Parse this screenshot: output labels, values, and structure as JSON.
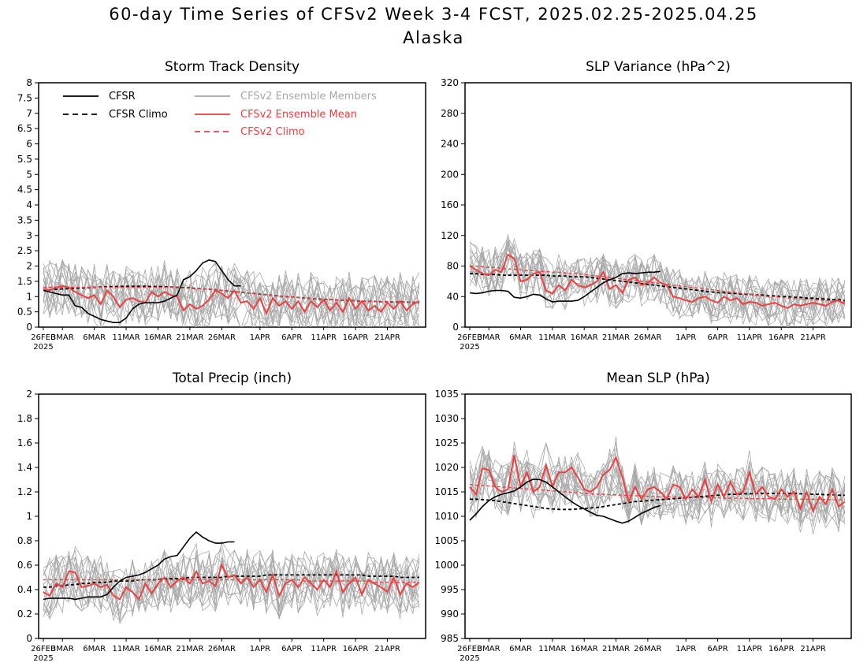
{
  "title": "60-day Time Series of CFSv2 Week 3-4 FCST, 2025.02.25-2025.04.25",
  "subtitle": "Alaska",
  "colors": {
    "cfsr": "#000000",
    "members": "#a8a8a8",
    "ens_mean": "#ee4040"
  },
  "legend": [
    {
      "label": "CFSR",
      "color": "#000000",
      "style": "solid"
    },
    {
      "label": "CFSR Climo",
      "color": "#000000",
      "style": "dashed"
    },
    {
      "label": "CFSv2 Ensemble Members",
      "color": "#a8a8a8",
      "style": "solid"
    },
    {
      "label": "CFSv2 Ensemble Mean",
      "color": "#ee4040",
      "style": "solid"
    },
    {
      "label": "CFSv2 Climo",
      "color": "#ee4040",
      "style": "dashed"
    }
  ],
  "chart_data": [
    {
      "type": "line",
      "title": "Storm Track Density",
      "x": "day index 0-59, 2025-02-26 .. 2025-04-26",
      "xticks": [
        "26FEB",
        "3MAR",
        "6MAR",
        "11MAR",
        "16MAR",
        "21MAR",
        "26MAR",
        "1APR",
        "6APR",
        "11APR",
        "16APR",
        "21APR"
      ],
      "xtick_days": [
        0,
        3,
        8,
        13,
        18,
        23,
        28,
        34,
        39,
        44,
        49,
        54
      ],
      "year_label": "2025",
      "ylim": [
        0,
        8
      ],
      "yticks": [
        0,
        0.5,
        1,
        1.5,
        2,
        2.5,
        3,
        3.5,
        4,
        4.5,
        5,
        5.5,
        6,
        6.5,
        7,
        7.5,
        8
      ],
      "yticklabels": [
        "0",
        "0.5",
        "1",
        "1.5",
        "2",
        "2.5",
        "3",
        "3.5",
        "4",
        "4.5",
        "5",
        "5.5",
        "6",
        "6.5",
        "7",
        "7.5",
        "8"
      ],
      "has_legend": true,
      "member_spread": 0.6,
      "cfsr": [
        1.2,
        1.15,
        1.1,
        1.05,
        1.05,
        0.7,
        0.65,
        0.45,
        0.35,
        0.25,
        0.2,
        0.15,
        0.15,
        0.3,
        0.6,
        0.75,
        0.8,
        0.8,
        0.8,
        0.85,
        0.95,
        1.05,
        1.55,
        1.65,
        1.85,
        2.1,
        2.2,
        2.15,
        1.85,
        1.55,
        1.35,
        1.35
      ],
      "cfsr_climo": [
        1.2,
        1.22,
        1.24,
        1.25,
        1.26,
        1.27,
        1.28,
        1.29,
        1.3,
        1.31,
        1.32,
        1.33,
        1.33,
        1.34,
        1.34,
        1.34,
        1.34,
        1.33,
        1.33,
        1.32,
        1.31,
        1.3,
        1.29,
        1.28,
        1.27,
        1.25,
        1.24,
        1.22,
        1.2,
        1.18,
        1.16,
        1.14,
        1.12,
        1.1,
        1.08,
        1.06,
        1.04,
        1.02,
        1.0,
        0.99,
        0.97,
        0.95,
        0.94,
        0.92,
        0.91,
        0.9,
        0.89,
        0.88,
        0.87,
        0.86,
        0.85,
        0.84,
        0.84,
        0.83,
        0.83,
        0.82,
        0.82,
        0.82,
        0.81,
        0.81
      ],
      "ens_mean": [
        1.25,
        1.2,
        1.3,
        1.35,
        1.3,
        1.15,
        1.05,
        0.95,
        1.05,
        0.75,
        1.2,
        1.0,
        0.65,
        0.9,
        0.95,
        0.85,
        0.8,
        1.15,
        1.0,
        1.15,
        1.05,
        1.0,
        0.55,
        0.75,
        0.6,
        0.7,
        0.9,
        1.2,
        1.1,
        0.95,
        1.2,
        0.8,
        0.85,
        0.6,
        0.95,
        0.45,
        0.95,
        0.7,
        0.85,
        0.6,
        0.85,
        0.5,
        0.85,
        0.65,
        0.9,
        0.55,
        0.8,
        0.5,
        0.95,
        0.6,
        0.85,
        0.55,
        0.7,
        0.5,
        0.8,
        0.6,
        0.85,
        0.55,
        0.75,
        0.85
      ],
      "cfsv2_climo": [
        1.3,
        1.3,
        1.3,
        1.3,
        1.3,
        1.3,
        1.3,
        1.3,
        1.3,
        1.3,
        1.3,
        1.3,
        1.3,
        1.3,
        1.3,
        1.3,
        1.3,
        1.3,
        1.3,
        1.3,
        1.3,
        1.29,
        1.28,
        1.27,
        1.26,
        1.25,
        1.24,
        1.22,
        1.2,
        1.18,
        1.16,
        1.14,
        1.12,
        1.1,
        1.08,
        1.06,
        1.04,
        1.02,
        1.0,
        0.99,
        0.97,
        0.95,
        0.94,
        0.92,
        0.91,
        0.9,
        0.89,
        0.88,
        0.87,
        0.86,
        0.85,
        0.84,
        0.84,
        0.83,
        0.83,
        0.82,
        0.82,
        0.82,
        0.81,
        0.81
      ]
    },
    {
      "type": "line",
      "title": "SLP Variance (hPa^2)",
      "x": "day index 0-59, 2025-02-26 .. 2025-04-26",
      "xticks": [
        "26FEB",
        "3MAR",
        "6MAR",
        "11MAR",
        "16MAR",
        "21MAR",
        "26MAR",
        "1APR",
        "6APR",
        "11APR",
        "16APR",
        "21APR"
      ],
      "xtick_days": [
        0,
        3,
        8,
        13,
        18,
        23,
        28,
        34,
        39,
        44,
        49,
        54
      ],
      "year_label": "2025",
      "ylim": [
        0,
        320
      ],
      "yticks": [
        0,
        40,
        80,
        120,
        160,
        200,
        240,
        280,
        320
      ],
      "yticklabels": [
        "0",
        "40",
        "80",
        "120",
        "160",
        "200",
        "240",
        "280",
        "320"
      ],
      "has_legend": false,
      "member_spread": 20,
      "cfsr": [
        45,
        44,
        45,
        47,
        48,
        48,
        47,
        39,
        38,
        40,
        43,
        42,
        37,
        33,
        34,
        34,
        34,
        35,
        40,
        46,
        52,
        58,
        62,
        65,
        70,
        71,
        70,
        71,
        72,
        72,
        73
      ],
      "cfsr_climo": [
        70,
        70,
        69,
        69,
        69,
        68,
        68,
        68,
        68,
        68,
        68,
        68,
        68,
        67,
        67,
        67,
        66,
        66,
        66,
        65,
        64,
        63,
        62,
        61,
        60,
        59,
        58,
        57,
        56,
        55,
        54,
        53,
        52,
        51,
        50,
        49,
        48,
        47,
        46,
        45,
        45,
        44,
        44,
        43,
        43,
        42,
        42,
        41,
        41,
        40,
        40,
        39,
        39,
        38,
        38,
        37,
        37,
        36,
        36,
        35
      ],
      "ens_mean": [
        80,
        75,
        70,
        68,
        75,
        72,
        95,
        90,
        60,
        62,
        70,
        72,
        48,
        44,
        55,
        48,
        62,
        55,
        52,
        55,
        60,
        72,
        50,
        55,
        45,
        62,
        65,
        55,
        58,
        65,
        58,
        55,
        40,
        38,
        35,
        33,
        38,
        40,
        35,
        32,
        40,
        35,
        38,
        30,
        33,
        32,
        28,
        30,
        32,
        28,
        25,
        30,
        28,
        30,
        32,
        30,
        28,
        33,
        35,
        30
      ],
      "cfsv2_climo": [
        80,
        80,
        79,
        78,
        78,
        77,
        76,
        76,
        75,
        74,
        74,
        73,
        73,
        72,
        72,
        71,
        70,
        70,
        69,
        68,
        67,
        66,
        65,
        64,
        63,
        62,
        61,
        60,
        59,
        58,
        57,
        56,
        55,
        54,
        53,
        52,
        51,
        50,
        49,
        48,
        47,
        46,
        45,
        44,
        43,
        42,
        41,
        40,
        40,
        39,
        38,
        37,
        37,
        36,
        36,
        35,
        35,
        34,
        34,
        33
      ]
    },
    {
      "type": "line",
      "title": "Total Precip (inch)",
      "x": "day index 0-59, 2025-02-26 .. 2025-04-26",
      "xticks": [
        "26FEB",
        "3MAR",
        "6MAR",
        "11MAR",
        "16MAR",
        "21MAR",
        "26MAR",
        "1APR",
        "6APR",
        "11APR",
        "16APR",
        "21APR"
      ],
      "xtick_days": [
        0,
        3,
        8,
        13,
        18,
        23,
        28,
        34,
        39,
        44,
        49,
        54
      ],
      "year_label": "2025",
      "ylim": [
        0,
        2
      ],
      "yticks": [
        0,
        0.2,
        0.4,
        0.6,
        0.8,
        1,
        1.2,
        1.4,
        1.6,
        1.8,
        2
      ],
      "yticklabels": [
        "0",
        "0.2",
        "0.4",
        "0.6",
        "0.8",
        "1",
        "1.2",
        "1.4",
        "1.6",
        "1.8",
        "2"
      ],
      "has_legend": false,
      "member_spread": 0.15,
      "cfsr": [
        0.32,
        0.33,
        0.33,
        0.33,
        0.33,
        0.32,
        0.33,
        0.34,
        0.34,
        0.34,
        0.36,
        0.42,
        0.47,
        0.5,
        0.51,
        0.52,
        0.54,
        0.57,
        0.6,
        0.65,
        0.67,
        0.68,
        0.75,
        0.82,
        0.87,
        0.83,
        0.8,
        0.78,
        0.78,
        0.79,
        0.79
      ],
      "cfsr_climo": [
        0.42,
        0.42,
        0.43,
        0.43,
        0.44,
        0.44,
        0.45,
        0.45,
        0.46,
        0.46,
        0.46,
        0.47,
        0.47,
        0.47,
        0.47,
        0.48,
        0.48,
        0.48,
        0.48,
        0.49,
        0.49,
        0.49,
        0.49,
        0.5,
        0.5,
        0.5,
        0.5,
        0.5,
        0.5,
        0.51,
        0.51,
        0.51,
        0.51,
        0.51,
        0.51,
        0.52,
        0.52,
        0.52,
        0.52,
        0.52,
        0.52,
        0.52,
        0.52,
        0.52,
        0.52,
        0.52,
        0.52,
        0.52,
        0.52,
        0.52,
        0.52,
        0.51,
        0.51,
        0.51,
        0.51,
        0.51,
        0.5,
        0.5,
        0.5,
        0.5
      ],
      "ens_mean": [
        0.38,
        0.35,
        0.45,
        0.42,
        0.55,
        0.54,
        0.42,
        0.43,
        0.45,
        0.42,
        0.44,
        0.35,
        0.32,
        0.42,
        0.38,
        0.32,
        0.45,
        0.37,
        0.45,
        0.5,
        0.42,
        0.47,
        0.5,
        0.45,
        0.55,
        0.45,
        0.47,
        0.43,
        0.6,
        0.5,
        0.52,
        0.45,
        0.5,
        0.42,
        0.48,
        0.38,
        0.52,
        0.35,
        0.45,
        0.48,
        0.42,
        0.5,
        0.45,
        0.4,
        0.48,
        0.42,
        0.55,
        0.38,
        0.45,
        0.5,
        0.36,
        0.48,
        0.45,
        0.42,
        0.38,
        0.5,
        0.36,
        0.45,
        0.42,
        0.46
      ],
      "cfsv2_climo": [
        0.48,
        0.48,
        0.48,
        0.48,
        0.48,
        0.48,
        0.48,
        0.48,
        0.48,
        0.48,
        0.48,
        0.48,
        0.48,
        0.48,
        0.48,
        0.48,
        0.48,
        0.48,
        0.48,
        0.48,
        0.48,
        0.48,
        0.48,
        0.48,
        0.48,
        0.48,
        0.48,
        0.48,
        0.48,
        0.48,
        0.48,
        0.48,
        0.48,
        0.48,
        0.48,
        0.48,
        0.48,
        0.48,
        0.48,
        0.48,
        0.48,
        0.47,
        0.47,
        0.47,
        0.47,
        0.47,
        0.47,
        0.47,
        0.47,
        0.47,
        0.47,
        0.47,
        0.46,
        0.46,
        0.46,
        0.46,
        0.46,
        0.46,
        0.46,
        0.46
      ]
    },
    {
      "type": "line",
      "title": "Mean SLP (hPa)",
      "x": "day index 0-59, 2025-02-26 .. 2025-04-26",
      "xticks": [
        "26FEB",
        "3MAR",
        "6MAR",
        "11MAR",
        "16MAR",
        "21MAR",
        "26MAR",
        "1APR",
        "6APR",
        "11APR",
        "16APR",
        "21APR"
      ],
      "xtick_days": [
        0,
        3,
        8,
        13,
        18,
        23,
        28,
        34,
        39,
        44,
        49,
        54
      ],
      "year_label": "2025",
      "ylim": [
        985,
        1035
      ],
      "yticks": [
        985,
        990,
        995,
        1000,
        1005,
        1010,
        1015,
        1020,
        1025,
        1030,
        1035
      ],
      "yticklabels": [
        "985",
        "990",
        "995",
        "1000",
        "1005",
        "1010",
        "1015",
        "1020",
        "1025",
        "1030",
        "1035"
      ],
      "has_legend": false,
      "member_spread": 3.5,
      "cfsr": [
        1009.2,
        1010.5,
        1012.0,
        1013.2,
        1014.0,
        1014.5,
        1014.8,
        1015.2,
        1016.0,
        1017.0,
        1017.6,
        1017.5,
        1017.0,
        1016.0,
        1015.0,
        1014.0,
        1013.0,
        1012.2,
        1011.5,
        1010.8,
        1010.2,
        1010.0,
        1009.5,
        1009.0,
        1008.6,
        1009.0,
        1009.8,
        1010.6,
        1011.2,
        1011.8,
        1012.2
      ],
      "cfsr_climo": [
        1013.5,
        1013.5,
        1013.4,
        1013.3,
        1013.2,
        1013.0,
        1012.8,
        1012.6,
        1012.4,
        1012.2,
        1012.0,
        1011.8,
        1011.6,
        1011.5,
        1011.4,
        1011.4,
        1011.4,
        1011.5,
        1011.6,
        1011.7,
        1011.8,
        1012.0,
        1012.2,
        1012.4,
        1012.6,
        1012.8,
        1013.0,
        1013.1,
        1013.2,
        1013.3,
        1013.4,
        1013.5,
        1013.6,
        1013.7,
        1013.8,
        1013.9,
        1014.0,
        1014.1,
        1014.2,
        1014.3,
        1014.4,
        1014.5,
        1014.5,
        1014.6,
        1014.6,
        1014.7,
        1014.7,
        1014.7,
        1014.7,
        1014.7,
        1014.7,
        1014.7,
        1014.6,
        1014.6,
        1014.5,
        1014.5,
        1014.4,
        1014.4,
        1014.3,
        1014.3
      ],
      "ens_mean": [
        1016.0,
        1014.5,
        1019.8,
        1019.5,
        1016.0,
        1015.0,
        1015.5,
        1022.5,
        1016.0,
        1019.0,
        1015.0,
        1016.0,
        1020.5,
        1016.0,
        1019.0,
        1019.0,
        1020.0,
        1018.0,
        1015.5,
        1015.0,
        1016.0,
        1018.5,
        1019.5,
        1022.0,
        1018.0,
        1013.0,
        1016.0,
        1013.5,
        1015.5,
        1016.0,
        1015.0,
        1013.5,
        1016.5,
        1016.0,
        1013.5,
        1015.5,
        1014.0,
        1017.5,
        1013.0,
        1016.5,
        1014.0,
        1017.0,
        1014.5,
        1015.0,
        1019.0,
        1014.5,
        1016.0,
        1014.0,
        1013.5,
        1015.5,
        1014.0,
        1015.0,
        1011.5,
        1015.0,
        1011.0,
        1014.0,
        1012.5,
        1015.5,
        1012.0,
        1013.0
      ],
      "cfsv2_climo": [
        1016.5,
        1016.4,
        1016.3,
        1016.2,
        1016.1,
        1016.0,
        1015.9,
        1015.8,
        1015.7,
        1015.6,
        1015.5,
        1015.4,
        1015.3,
        1015.2,
        1015.1,
        1015.0,
        1014.9,
        1014.8,
        1014.7,
        1014.6,
        1014.5,
        1014.5,
        1014.4,
        1014.4,
        1014.3,
        1014.3,
        1014.2,
        1014.2,
        1014.1,
        1014.1,
        1014.0,
        1014.0,
        1014.0,
        1013.9,
        1013.9,
        1013.9,
        1013.8,
        1013.8,
        1013.8,
        1013.8,
        1013.7,
        1013.7,
        1013.7,
        1013.7,
        1013.6,
        1013.6,
        1013.6,
        1013.6,
        1013.6,
        1013.5,
        1013.5,
        1013.5,
        1013.5,
        1013.5,
        1013.5,
        1013.5,
        1013.4,
        1013.4,
        1013.4,
        1013.4
      ]
    }
  ]
}
